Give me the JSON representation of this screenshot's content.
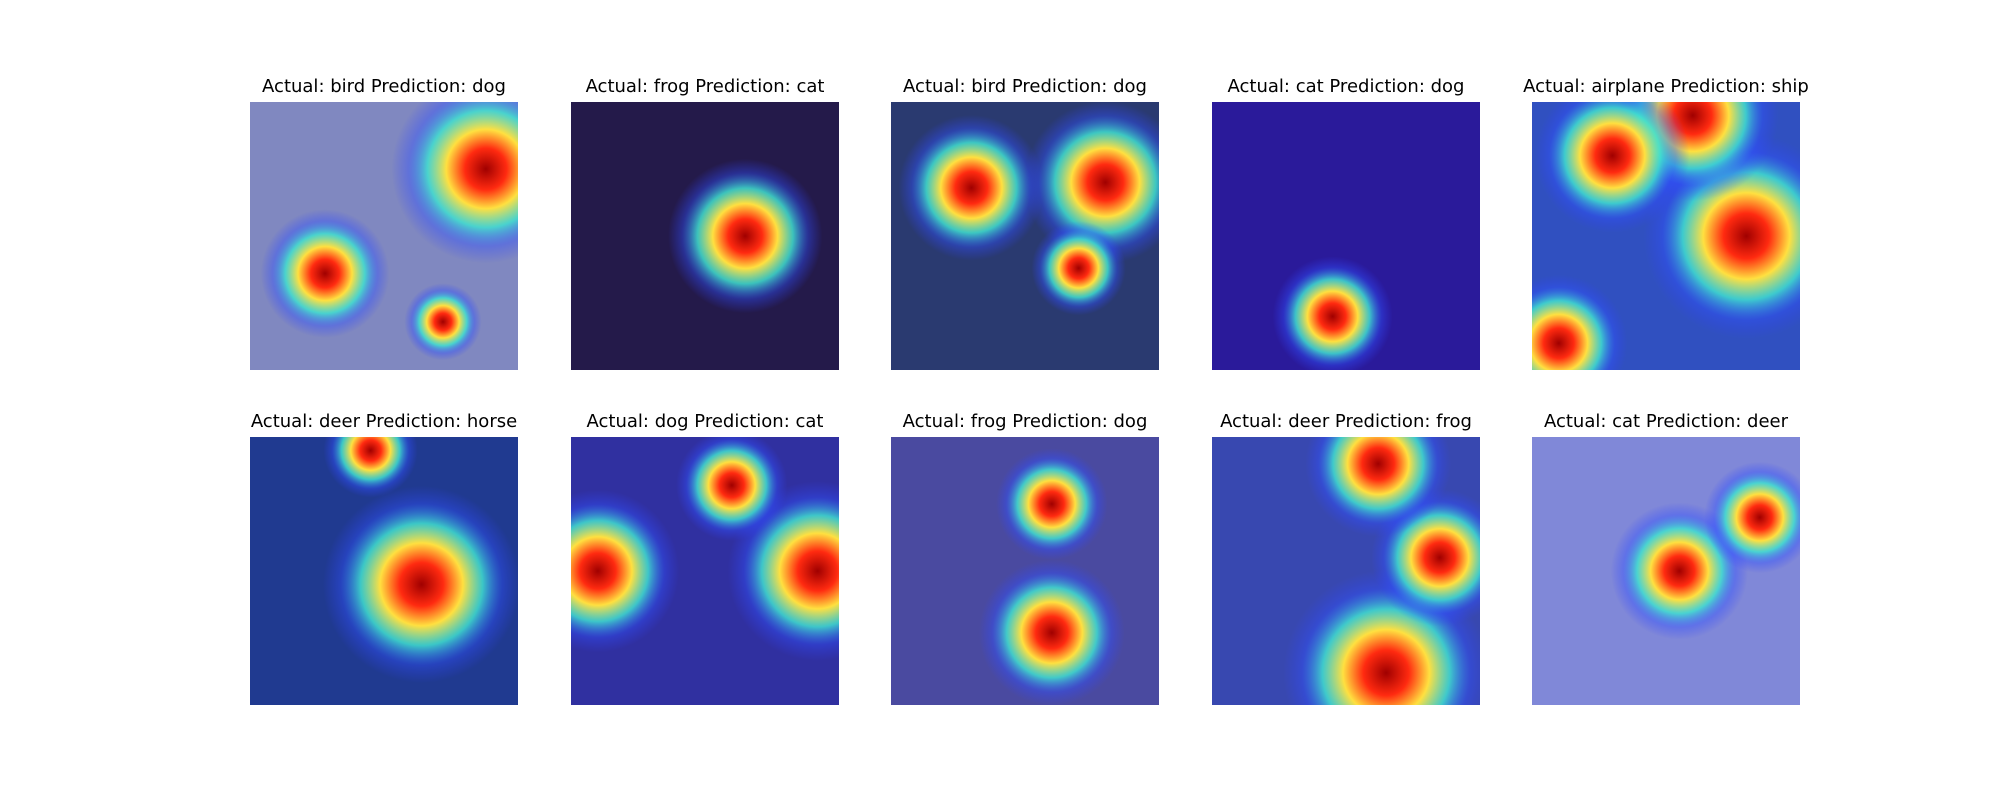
{
  "panels": [
    {
      "title": "Actual: bird Prediction: dog"
    },
    {
      "title": "Actual: frog Prediction: cat"
    },
    {
      "title": "Actual: bird Prediction: dog"
    },
    {
      "title": "Actual: cat Prediction: dog"
    },
    {
      "title": "Actual: airplane Prediction: ship"
    },
    {
      "title": "Actual: deer Prediction: horse"
    },
    {
      "title": "Actual: dog Prediction: cat"
    },
    {
      "title": "Actual: frog Prediction: dog"
    },
    {
      "title": "Actual: deer Prediction: frog"
    },
    {
      "title": "Actual: cat Prediction: deer"
    }
  ]
}
